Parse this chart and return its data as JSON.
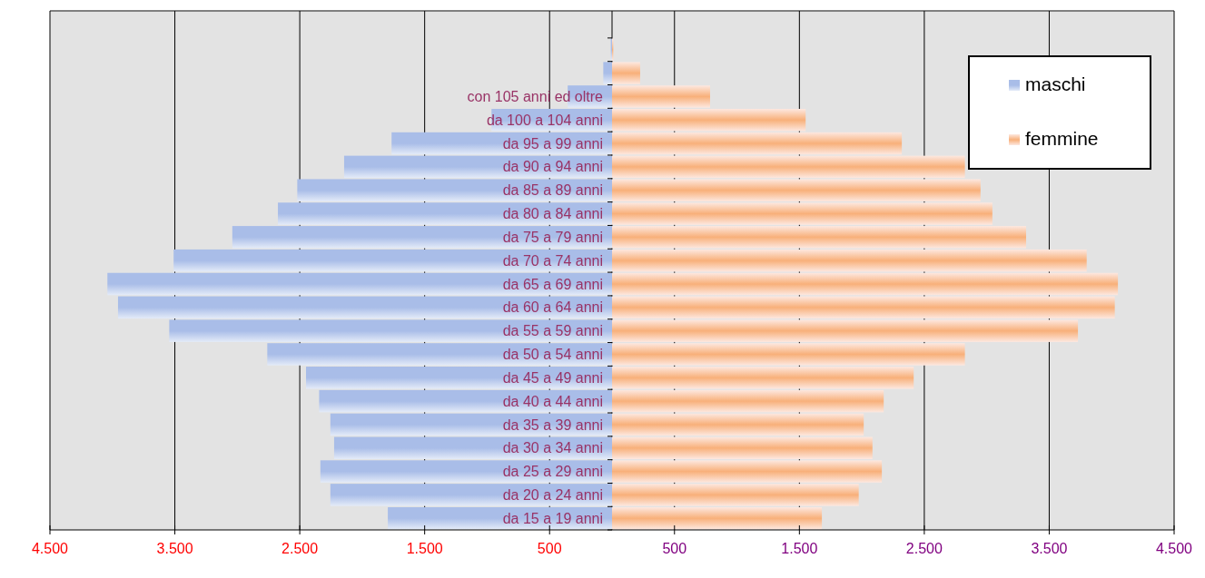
{
  "chart_data": {
    "type": "bar",
    "orientation": "horizontal",
    "stacked": true,
    "categories": [
      null,
      null,
      "con 105 anni ed oltre",
      "da 100 a 104 anni",
      "da 95 a 99 anni",
      "da 90 a 94 anni",
      "da 85 a 89 anni",
      "da 80 a 84 anni",
      "da 75 a 79 anni",
      "da 70 a 74 anni",
      "da 65 a 69 anni",
      "da 60 a 64 anni",
      "da 55 a 59 anni",
      "da 50 a 54 anni",
      "da 45 a 49 anni",
      "da 40 a 44 anni",
      "da 35 a 39 anni",
      "da 30 a 34 anni",
      "da 25 a 29 anni",
      "da 20 a 24 anni",
      "da 15 a 19 anni"
    ],
    "series": [
      {
        "name": "maschi",
        "color": "#a9bde8",
        "values": [
          -10,
          -70,
          -355,
          -965,
          -1765,
          -2145,
          -2520,
          -2675,
          -3040,
          -3510,
          -4040,
          -3955,
          -3545,
          -2760,
          -2450,
          -2345,
          -2255,
          -2225,
          -2335,
          -2255,
          -1795
        ]
      },
      {
        "name": "femmine",
        "color": "#f8b07a",
        "values": [
          10,
          225,
          785,
          1550,
          2320,
          2825,
          2950,
          3045,
          3315,
          3800,
          4050,
          4025,
          3730,
          2825,
          2415,
          2175,
          2015,
          2085,
          2160,
          1975,
          1680
        ]
      }
    ],
    "xlim": [
      -4500,
      4500
    ],
    "xticks": [
      {
        "value": -4500,
        "label": "4.500"
      },
      {
        "value": -3500,
        "label": "3.500"
      },
      {
        "value": -2500,
        "label": "2.500"
      },
      {
        "value": -1500,
        "label": "1.500"
      },
      {
        "value": -500,
        "label": "500"
      },
      {
        "value": 500,
        "label": "500"
      },
      {
        "value": 1500,
        "label": "1.500"
      },
      {
        "value": 2500,
        "label": "2.500"
      },
      {
        "value": 3500,
        "label": "3.500"
      },
      {
        "value": 4500,
        "label": "4.500"
      }
    ],
    "grid": "x",
    "legend": "top right"
  }
}
